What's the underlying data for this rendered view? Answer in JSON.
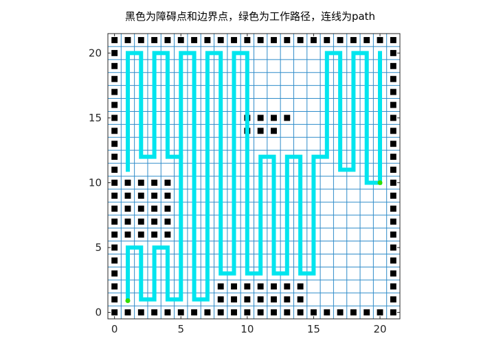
{
  "chart_data": {
    "type": "scatter",
    "title": "黑色为障碍点和边界点，绿色为工作路径，连线为path",
    "xlabel": "",
    "ylabel": "",
    "xlim": [
      -0.5,
      21.5
    ],
    "ylim": [
      -0.5,
      21.5
    ],
    "xticks": [
      0,
      5,
      10,
      15,
      20
    ],
    "yticks": [
      0,
      5,
      10,
      15,
      20
    ],
    "grid": true,
    "grid_step": 1,
    "colors": {
      "grid": "#2e8bc9",
      "obstacle": "#000000",
      "path": "#00e5ee",
      "marker": "#33dd00",
      "axis": "#262626"
    },
    "series": [
      {
        "marker": "square",
        "points": [
          [
            1,
            10
          ],
          [
            2,
            10
          ],
          [
            3,
            10
          ],
          [
            4,
            10
          ],
          [
            1,
            9
          ],
          [
            2,
            9
          ],
          [
            3,
            9
          ],
          [
            4,
            9
          ],
          [
            1,
            8
          ],
          [
            2,
            8
          ],
          [
            3,
            8
          ],
          [
            4,
            8
          ],
          [
            1,
            7
          ],
          [
            2,
            7
          ],
          [
            3,
            7
          ],
          [
            4,
            7
          ],
          [
            1,
            6
          ],
          [
            2,
            6
          ],
          [
            3,
            6
          ],
          [
            4,
            6
          ],
          [
            10,
            15
          ],
          [
            11,
            15
          ],
          [
            12,
            15
          ],
          [
            13,
            15
          ],
          [
            10,
            14
          ],
          [
            11,
            14
          ],
          [
            12,
            14
          ],
          [
            8,
            2
          ],
          [
            9,
            2
          ],
          [
            10,
            2
          ],
          [
            11,
            2
          ],
          [
            12,
            2
          ],
          [
            13,
            2
          ],
          [
            14,
            2
          ],
          [
            8,
            1
          ],
          [
            9,
            1
          ],
          [
            10,
            1
          ],
          [
            11,
            1
          ],
          [
            12,
            1
          ],
          [
            13,
            1
          ],
          [
            14,
            1
          ]
        ]
      },
      {
        "marker": "green-dot",
        "points": [
          [
            1,
            0.9
          ],
          [
            20,
            10
          ]
        ]
      },
      {
        "marker": "line",
        "points": [
          [
            1,
            1
          ],
          [
            1,
            5
          ],
          [
            2,
            5
          ],
          [
            2,
            1
          ],
          [
            3,
            1
          ],
          [
            3,
            5
          ],
          [
            4,
            5
          ],
          [
            4,
            1
          ],
          [
            5,
            1
          ],
          [
            5,
            20
          ],
          [
            6,
            20
          ],
          [
            6,
            1
          ],
          [
            7,
            1
          ],
          [
            7,
            20
          ],
          [
            8,
            20
          ],
          [
            8,
            3
          ],
          [
            9,
            3
          ],
          [
            9,
            20
          ],
          [
            10,
            20
          ],
          [
            10,
            3
          ],
          [
            11,
            3
          ],
          [
            11,
            12
          ],
          [
            12,
            12
          ],
          [
            12,
            3
          ],
          [
            13,
            3
          ],
          [
            13,
            12
          ],
          [
            14,
            12
          ],
          [
            14,
            3
          ],
          [
            15,
            3
          ],
          [
            15,
            12
          ],
          [
            16,
            12
          ],
          [
            16,
            20
          ],
          [
            17,
            20
          ],
          [
            17,
            11
          ],
          [
            18,
            11
          ],
          [
            18,
            20
          ],
          [
            19,
            20
          ],
          [
            19,
            10
          ],
          [
            20,
            10
          ],
          [
            20,
            20
          ]
        ]
      },
      {
        "marker": "line",
        "points": [
          [
            1,
            11
          ],
          [
            1,
            20
          ],
          [
            2,
            20
          ],
          [
            2,
            12
          ],
          [
            3,
            12
          ],
          [
            3,
            20
          ],
          [
            4,
            20
          ],
          [
            4,
            12
          ],
          [
            5,
            12
          ]
        ]
      }
    ]
  }
}
